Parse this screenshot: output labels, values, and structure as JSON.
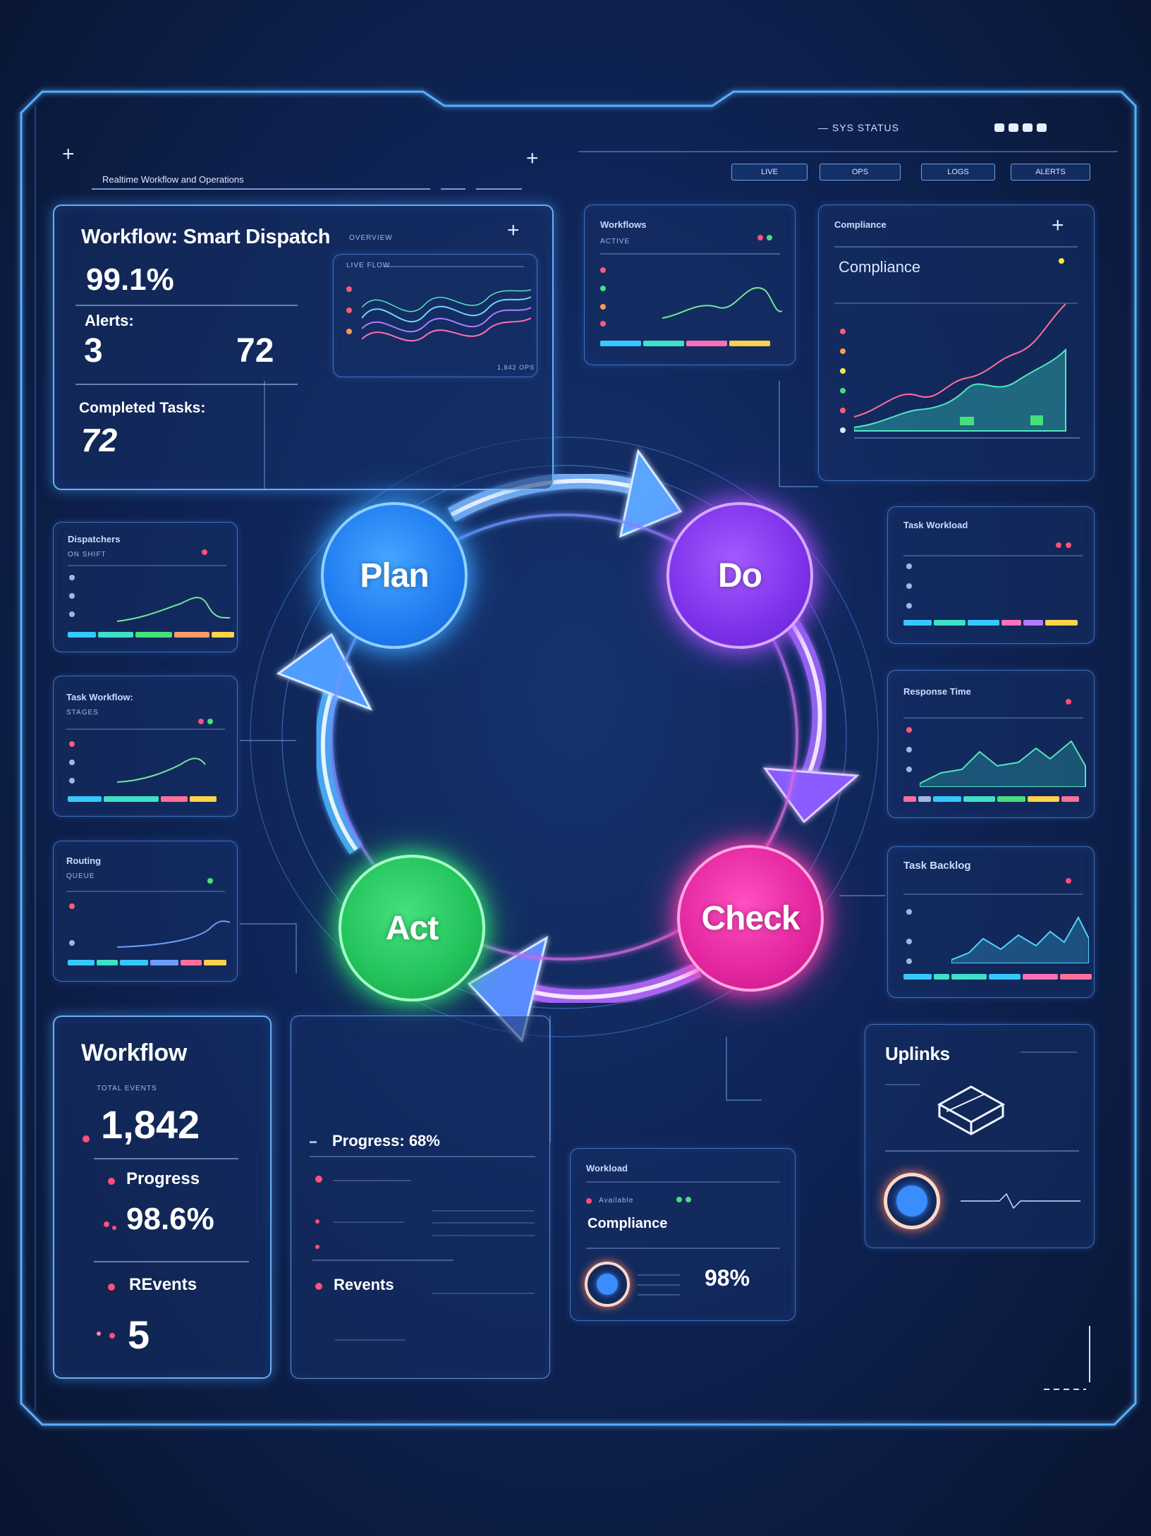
{
  "header": {
    "subtitle": "Realtime Workflow and Operations",
    "top_right_label": "— SYS STATUS",
    "buttons": [
      "LIVE",
      "OPS",
      "LOGS",
      "ALERTS"
    ]
  },
  "cards": {
    "smart_dispatch": {
      "title": "Workflow: Smart Dispatch",
      "title_suffix": "OVERVIEW",
      "percent": "99.1%",
      "alerts_label": "Alerts:",
      "alerts_value": "3",
      "alerts_value_2": "72",
      "completed_label": "Completed Tasks:",
      "completed_value": "72",
      "chart_label": "LIVE FLOW",
      "chart_footer": "1,842 OPS"
    },
    "workflow_status": {
      "title": "Workflows",
      "subtitle": "ACTIVE"
    },
    "compliance_top": {
      "title": "Compliance",
      "heading": "Compliance"
    },
    "dispatchers": {
      "title": "Dispatchers",
      "subtitle": "ON SHIFT"
    },
    "task_workflow": {
      "title": "Task Workflow:",
      "subtitle": "STAGES"
    },
    "routing": {
      "title": "Routing",
      "subtitle": "QUEUE"
    },
    "task_workload": {
      "title": "Task Workload"
    },
    "response_time": {
      "title": "Response Time"
    },
    "task_backlog": {
      "title": "Task Backlog"
    },
    "workflow_big": {
      "title": "Workflow",
      "sub": "TOTAL EVENTS",
      "count": "1,842",
      "progress_label": "Progress",
      "progress_value": "98.6%",
      "events_label": "REvents",
      "events_value": "5"
    },
    "progress_card": {
      "progress_text": "Progress: 68%",
      "events_label": "Revents"
    },
    "compliance_small": {
      "title": "Workload",
      "sub_label": "Available",
      "heading": "Compliance",
      "value": "98%"
    },
    "uplinks": {
      "title": "Uplinks"
    }
  },
  "cycle": {
    "plan": "Plan",
    "do": "Do",
    "check": "Check",
    "act": "Act"
  },
  "colors": {
    "plan": "#1f7bf0",
    "do": "#7d32ea",
    "check": "#e3269f",
    "act": "#22c25b",
    "accent": "#3aa0ff",
    "background": "#0f2456"
  },
  "icons": [
    "plus-icon",
    "cube-icon",
    "ring-target-icon",
    "arrow-icon"
  ]
}
